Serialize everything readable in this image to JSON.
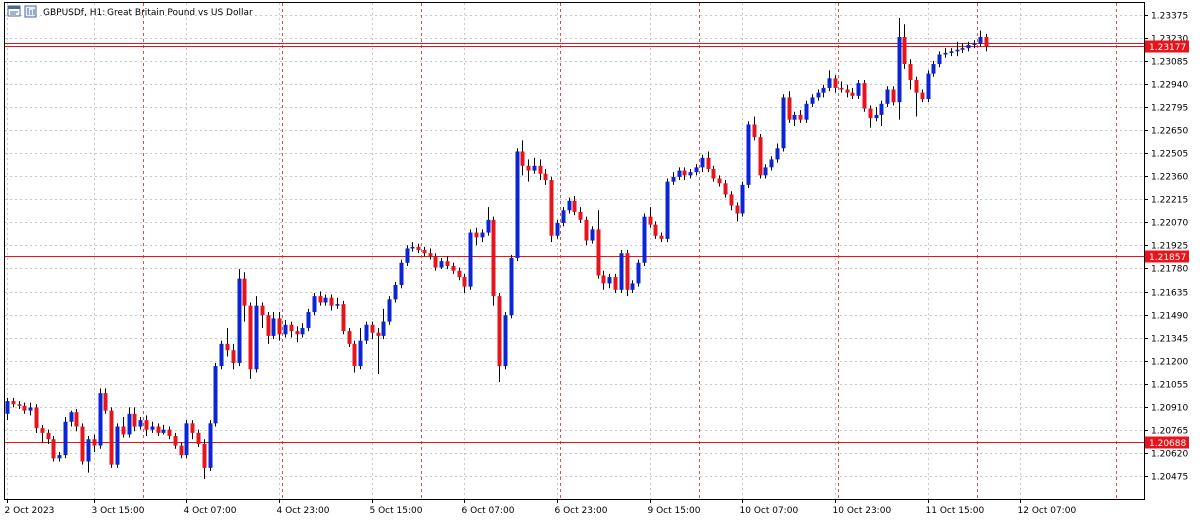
{
  "header": {
    "symbol_label": "GBPUSDf, H1:",
    "description": "Great Britain Pound vs US Dollar",
    "icons": [
      "chart-window-icon",
      "symbol-icon"
    ]
  },
  "colors": {
    "bull": "#0a24d8",
    "bear": "#e8141b",
    "wick": "#000000",
    "grid": "#c8c8c8",
    "session_line": "#e05050",
    "level_line": "#e8141b",
    "price_label_bg": "#e8141b",
    "price_label_text": "#ffffff"
  },
  "chart_data": {
    "type": "candlestick",
    "symbol": "GBPUSDf",
    "timeframe": "H1",
    "ylim": [
      1.2033,
      1.2345
    ],
    "y_ticks": [
      "1.23375",
      "1.23230",
      "1.23085",
      "1.22940",
      "1.22795",
      "1.22650",
      "1.22505",
      "1.22360",
      "1.22215",
      "1.22070",
      "1.21925",
      "1.21780",
      "1.21635",
      "1.21490",
      "1.21345",
      "1.21200",
      "1.21055",
      "1.20910",
      "1.20765",
      "1.20620",
      "1.20475"
    ],
    "x_labels": [
      {
        "label": "2 Oct 2023",
        "bar": 0
      },
      {
        "label": "3 Oct 15:00",
        "bar": 15
      },
      {
        "label": "4 Oct 07:00",
        "bar": 31
      },
      {
        "label": "4 Oct 23:00",
        "bar": 47
      },
      {
        "label": "5 Oct 15:00",
        "bar": 63
      },
      {
        "label": "6 Oct 07:00",
        "bar": 79
      },
      {
        "label": "6 Oct 23:00",
        "bar": 95
      },
      {
        "label": "9 Oct 15:00",
        "bar": 111
      },
      {
        "label": "10 Oct 07:00",
        "bar": 127
      },
      {
        "label": "10 Oct 23:00",
        "bar": 143
      },
      {
        "label": "11 Oct 15:00",
        "bar": 159
      },
      {
        "label": "12 Oct 07:00",
        "bar": 175
      }
    ],
    "session_bars": [
      0,
      24,
      48,
      72,
      96,
      120,
      144,
      168,
      192
    ],
    "levels": [
      {
        "price": 1.23177,
        "label": "1.23177",
        "double": true
      },
      {
        "price": 1.21857,
        "label": "1.21857",
        "double": false
      },
      {
        "price": 1.20688,
        "label": "1.20688",
        "double": false
      }
    ],
    "candles": [
      [
        1.20866,
        1.20946,
        1.20966,
        1.20826
      ],
      [
        1.20946,
        1.20926,
        1.20966,
        1.20906
      ],
      [
        1.20926,
        1.20916,
        1.20946,
        1.20896
      ],
      [
        1.20916,
        1.20886,
        1.20936,
        1.20866
      ],
      [
        1.20886,
        1.20906,
        1.20936,
        1.20856
      ],
      [
        1.20906,
        1.20776,
        1.20926,
        1.20746
      ],
      [
        1.20776,
        1.20746,
        1.20796,
        1.20686
      ],
      [
        1.20746,
        1.20706,
        1.20766,
        1.20676
      ],
      [
        1.20706,
        1.20586,
        1.20726,
        1.20566
      ],
      [
        1.20586,
        1.20606,
        1.20626,
        1.20566
      ],
      [
        1.20606,
        1.20816,
        1.20846,
        1.20586
      ],
      [
        1.20816,
        1.20876,
        1.20886,
        1.20786
      ],
      [
        1.20876,
        1.20786,
        1.20896,
        1.20756
      ],
      [
        1.20786,
        1.20566,
        1.20806,
        1.20546
      ],
      [
        1.20566,
        1.20706,
        1.20726,
        1.20496
      ],
      [
        1.20706,
        1.20666,
        1.20736,
        1.20626
      ],
      [
        1.20666,
        1.20996,
        1.21026,
        1.20646
      ],
      [
        1.20996,
        1.20886,
        1.21026,
        1.20866
      ],
      [
        1.20886,
        1.20546,
        1.20906,
        1.20526
      ],
      [
        1.20546,
        1.20786,
        1.20806,
        1.20526
      ],
      [
        1.20786,
        1.20736,
        1.20846,
        1.20716
      ],
      [
        1.20736,
        1.20866,
        1.20906,
        1.20716
      ],
      [
        1.20866,
        1.20786,
        1.20906,
        1.20756
      ],
      [
        1.20786,
        1.20826,
        1.20846,
        1.20766
      ],
      [
        1.20826,
        1.20766,
        1.20856,
        1.20726
      ],
      [
        1.20766,
        1.20786,
        1.20816,
        1.20746
      ],
      [
        1.20786,
        1.20746,
        1.20806,
        1.20726
      ],
      [
        1.20746,
        1.20766,
        1.20796,
        1.20736
      ],
      [
        1.20766,
        1.20726,
        1.20786,
        1.20706
      ],
      [
        1.20726,
        1.20666,
        1.20746,
        1.20646
      ],
      [
        1.20666,
        1.20606,
        1.20686,
        1.20586
      ],
      [
        1.20606,
        1.20806,
        1.20826,
        1.20586
      ],
      [
        1.20806,
        1.20746,
        1.20826,
        1.20706
      ],
      [
        1.20746,
        1.20676,
        1.20766,
        1.20656
      ],
      [
        1.20676,
        1.20526,
        1.20706,
        1.20456
      ],
      [
        1.20526,
        1.20806,
        1.20826,
        1.20506
      ],
      [
        1.20806,
        1.21166,
        1.21186,
        1.20786
      ],
      [
        1.21166,
        1.21306,
        1.21326,
        1.21146
      ],
      [
        1.21306,
        1.21266,
        1.21406,
        1.21226
      ],
      [
        1.21266,
        1.21186,
        1.21306,
        1.21146
      ],
      [
        1.21186,
        1.21716,
        1.21776,
        1.21166
      ],
      [
        1.21716,
        1.21546,
        1.21756,
        1.21446
      ],
      [
        1.21546,
        1.21146,
        1.21566,
        1.21086
      ],
      [
        1.21146,
        1.21546,
        1.21606,
        1.21126
      ],
      [
        1.21546,
        1.21486,
        1.21566,
        1.21406
      ],
      [
        1.21486,
        1.21356,
        1.21506,
        1.21306
      ],
      [
        1.21356,
        1.21466,
        1.21506,
        1.21336
      ],
      [
        1.21466,
        1.21366,
        1.21506,
        1.21326
      ],
      [
        1.21366,
        1.21426,
        1.21456,
        1.21346
      ],
      [
        1.21426,
        1.21386,
        1.21446,
        1.21346
      ],
      [
        1.21386,
        1.21366,
        1.21416,
        1.21316
      ],
      [
        1.21366,
        1.21406,
        1.21436,
        1.21346
      ],
      [
        1.21406,
        1.21506,
        1.21526,
        1.21386
      ],
      [
        1.21506,
        1.21606,
        1.21626,
        1.21486
      ],
      [
        1.21606,
        1.21566,
        1.21636,
        1.21546
      ],
      [
        1.21566,
        1.21596,
        1.21616,
        1.21546
      ],
      [
        1.21596,
        1.21546,
        1.21616,
        1.21516
      ],
      [
        1.21546,
        1.21556,
        1.21596,
        1.21526
      ],
      [
        1.21556,
        1.21386,
        1.21576,
        1.21366
      ],
      [
        1.21386,
        1.21306,
        1.21406,
        1.21286
      ],
      [
        1.21306,
        1.21166,
        1.21326,
        1.21126
      ],
      [
        1.21166,
        1.21326,
        1.21406,
        1.21146
      ],
      [
        1.21326,
        1.21426,
        1.21446,
        1.21306
      ],
      [
        1.21426,
        1.21376,
        1.21446,
        1.21336
      ],
      [
        1.21376,
        1.21356,
        1.21406,
        1.21116
      ],
      [
        1.21356,
        1.21446,
        1.21526,
        1.21336
      ],
      [
        1.21446,
        1.21586,
        1.21606,
        1.21426
      ],
      [
        1.21586,
        1.21676,
        1.21696,
        1.21566
      ],
      [
        1.21676,
        1.21816,
        1.21836,
        1.21656
      ],
      [
        1.21816,
        1.21906,
        1.21926,
        1.21796
      ],
      [
        1.21906,
        1.21916,
        1.21946,
        1.21886
      ],
      [
        1.21916,
        1.21896,
        1.21936,
        1.21876
      ],
      [
        1.21896,
        1.21876,
        1.21916,
        1.21856
      ],
      [
        1.21876,
        1.21856,
        1.21906,
        1.21836
      ],
      [
        1.21856,
        1.21786,
        1.21876,
        1.21766
      ],
      [
        1.21786,
        1.21826,
        1.21846,
        1.21776
      ],
      [
        1.21826,
        1.21796,
        1.21856,
        1.21776
      ],
      [
        1.21796,
        1.21766,
        1.21816,
        1.21746
      ],
      [
        1.21766,
        1.21726,
        1.21786,
        1.21706
      ],
      [
        1.21726,
        1.21666,
        1.21746,
        1.21626
      ],
      [
        1.21666,
        1.22006,
        1.22026,
        1.21646
      ],
      [
        1.22006,
        1.21976,
        1.22036,
        1.21926
      ],
      [
        1.21976,
        1.22006,
        1.22026,
        1.21946
      ],
      [
        1.22006,
        1.22086,
        1.22166,
        1.21986
      ],
      [
        1.22086,
        1.21606,
        1.22106,
        1.21546
      ],
      [
        1.21606,
        1.21166,
        1.21626,
        1.21066
      ],
      [
        1.21166,
        1.21486,
        1.21506,
        1.21146
      ],
      [
        1.21486,
        1.21846,
        1.21866,
        1.21466
      ],
      [
        1.21846,
        1.22516,
        1.22536,
        1.21826
      ],
      [
        1.22516,
        1.22426,
        1.22586,
        1.22366
      ],
      [
        1.22426,
        1.22396,
        1.22466,
        1.22326
      ],
      [
        1.22396,
        1.22426,
        1.22476,
        1.22376
      ],
      [
        1.22426,
        1.22376,
        1.22466,
        1.22336
      ],
      [
        1.22376,
        1.22336,
        1.22406,
        1.22306
      ],
      [
        1.22336,
        1.21986,
        1.22356,
        1.21946
      ],
      [
        1.21986,
        1.22066,
        1.22086,
        1.21966
      ],
      [
        1.22066,
        1.22146,
        1.22166,
        1.22046
      ],
      [
        1.22146,
        1.22206,
        1.22226,
        1.22126
      ],
      [
        1.22206,
        1.22136,
        1.22236,
        1.22116
      ],
      [
        1.22136,
        1.22086,
        1.22166,
        1.22066
      ],
      [
        1.22086,
        1.21956,
        1.22106,
        1.21926
      ],
      [
        1.21956,
        1.22026,
        1.22046,
        1.21936
      ],
      [
        1.22026,
        1.21736,
        1.22146,
        1.21716
      ],
      [
        1.21736,
        1.21686,
        1.21766,
        1.21646
      ],
      [
        1.21686,
        1.21726,
        1.21746,
        1.21656
      ],
      [
        1.21726,
        1.21646,
        1.21746,
        1.21626
      ],
      [
        1.21646,
        1.21876,
        1.21896,
        1.21626
      ],
      [
        1.21876,
        1.21646,
        1.21896,
        1.21606
      ],
      [
        1.21646,
        1.21686,
        1.21706,
        1.21626
      ],
      [
        1.21686,
        1.21816,
        1.21836,
        1.21666
      ],
      [
        1.21816,
        1.22106,
        1.22126,
        1.21796
      ],
      [
        1.22106,
        1.22056,
        1.22166,
        1.22036
      ],
      [
        1.22056,
        1.21986,
        1.22076,
        1.21966
      ],
      [
        1.21986,
        1.21966,
        1.22006,
        1.21946
      ],
      [
        1.21966,
        1.22326,
        1.22346,
        1.21946
      ],
      [
        1.22326,
        1.22356,
        1.22386,
        1.22306
      ],
      [
        1.22356,
        1.22396,
        1.22416,
        1.22336
      ],
      [
        1.22396,
        1.22366,
        1.22416,
        1.22336
      ],
      [
        1.22366,
        1.22386,
        1.22406,
        1.22346
      ],
      [
        1.22386,
        1.22416,
        1.22436,
        1.22366
      ],
      [
        1.22416,
        1.22476,
        1.22496,
        1.22386
      ],
      [
        1.22476,
        1.22406,
        1.22516,
        1.22386
      ],
      [
        1.22406,
        1.22346,
        1.22426,
        1.22326
      ],
      [
        1.22346,
        1.22316,
        1.22366,
        1.22296
      ],
      [
        1.22316,
        1.22246,
        1.22336,
        1.22226
      ],
      [
        1.22246,
        1.22176,
        1.22266,
        1.22146
      ],
      [
        1.22176,
        1.22126,
        1.22196,
        1.22076
      ],
      [
        1.22126,
        1.22306,
        1.22326,
        1.22106
      ],
      [
        1.22306,
        1.22686,
        1.22706,
        1.22286
      ],
      [
        1.22686,
        1.22606,
        1.22736,
        1.22586
      ],
      [
        1.22606,
        1.22366,
        1.22626,
        1.22346
      ],
      [
        1.22366,
        1.22416,
        1.22436,
        1.22346
      ],
      [
        1.22416,
        1.22466,
        1.22486,
        1.22396
      ],
      [
        1.22466,
        1.22536,
        1.22566,
        1.22446
      ],
      [
        1.22536,
        1.22856,
        1.22876,
        1.22516
      ],
      [
        1.22856,
        1.22716,
        1.22896,
        1.22696
      ],
      [
        1.22716,
        1.22746,
        1.22766,
        1.22676
      ],
      [
        1.22746,
        1.22716,
        1.22776,
        1.22696
      ],
      [
        1.22716,
        1.22816,
        1.22836,
        1.22696
      ],
      [
        1.22816,
        1.22856,
        1.22876,
        1.22796
      ],
      [
        1.22856,
        1.22886,
        1.22906,
        1.22836
      ],
      [
        1.22886,
        1.22916,
        1.22936,
        1.22856
      ],
      [
        1.22916,
        1.22976,
        1.23026,
        1.22896
      ],
      [
        1.22976,
        1.22916,
        1.22996,
        1.22886
      ],
      [
        1.22916,
        1.22906,
        1.22956,
        1.22886
      ],
      [
        1.22906,
        1.22886,
        1.22936,
        1.22856
      ],
      [
        1.22886,
        1.22866,
        1.22916,
        1.22846
      ],
      [
        1.22866,
        1.22946,
        1.22966,
        1.22846
      ],
      [
        1.22946,
        1.22786,
        1.22966,
        1.22766
      ],
      [
        1.22786,
        1.22726,
        1.22806,
        1.22666
      ],
      [
        1.22726,
        1.22746,
        1.22796,
        1.22706
      ],
      [
        1.22746,
        1.22816,
        1.22836,
        1.22676
      ],
      [
        1.22816,
        1.22906,
        1.22926,
        1.22796
      ],
      [
        1.22906,
        1.22826,
        1.22926,
        1.22806
      ],
      [
        1.22826,
        1.23236,
        1.23356,
        1.22716
      ],
      [
        1.23236,
        1.23066,
        1.23316,
        1.23036
      ],
      [
        1.23066,
        1.22966,
        1.23096,
        1.22906
      ],
      [
        1.22966,
        1.22886,
        1.22986,
        1.22736
      ],
      [
        1.22886,
        1.22846,
        1.22906,
        1.22826
      ],
      [
        1.22846,
        1.23006,
        1.23026,
        1.22826
      ],
      [
        1.23006,
        1.23066,
        1.23086,
        1.22986
      ],
      [
        1.23066,
        1.23126,
        1.23146,
        1.23046
      ],
      [
        1.23126,
        1.23136,
        1.23166,
        1.23106
      ],
      [
        1.23136,
        1.23146,
        1.23166,
        1.23116
      ],
      [
        1.23146,
        1.23156,
        1.23206,
        1.23116
      ],
      [
        1.23156,
        1.23166,
        1.23196,
        1.23136
      ],
      [
        1.23166,
        1.23186,
        1.23206,
        1.23146
      ],
      [
        1.23186,
        1.23196,
        1.23216,
        1.23166
      ],
      [
        1.23196,
        1.23236,
        1.23276,
        1.23176
      ],
      [
        1.23236,
        1.23177,
        1.23256,
        1.23146
      ]
    ]
  }
}
